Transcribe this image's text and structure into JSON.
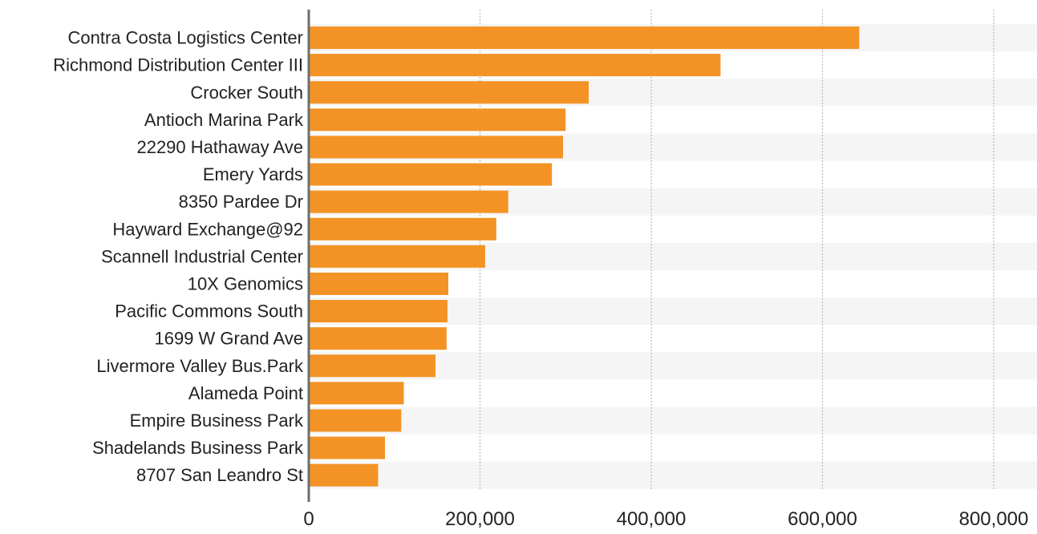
{
  "chart_data": {
    "type": "bar",
    "orientation": "horizontal",
    "categories": [
      "Contra Costa Logistics Center",
      "Richmond Distribution Center III",
      "Crocker South",
      "Antioch Marina Park",
      "22290 Hathaway Ave",
      "Emery Yards",
      "8350 Pardee Dr",
      "Hayward Exchange@92",
      "Scannell Industrial Center",
      "10X Genomics",
      "Pacific Commons South",
      "1699 W Grand Ave",
      "Livermore Valley Bus.Park",
      "Alameda Point",
      "Empire Business Park",
      "Shadelands Business Park",
      "8707 San Leandro St"
    ],
    "values": [
      643000,
      481000,
      327000,
      300000,
      297000,
      284000,
      233000,
      219000,
      206000,
      163000,
      162000,
      161000,
      148000,
      111000,
      108000,
      89000,
      81000
    ],
    "xlim": [
      0,
      800000
    ],
    "x_ticks": [
      0,
      200000,
      400000,
      600000,
      800000
    ],
    "x_tick_labels": [
      "0",
      "200,000",
      "400,000",
      "600,000",
      "800,000"
    ],
    "title": "",
    "xlabel": "",
    "ylabel": "",
    "grid": "vertical-dotted",
    "legend": "none",
    "bar_color": "#f39325",
    "band_color": "#f5f5f5",
    "axis_color": "#6d6d6d",
    "grid_color": "#b8b8b8"
  }
}
